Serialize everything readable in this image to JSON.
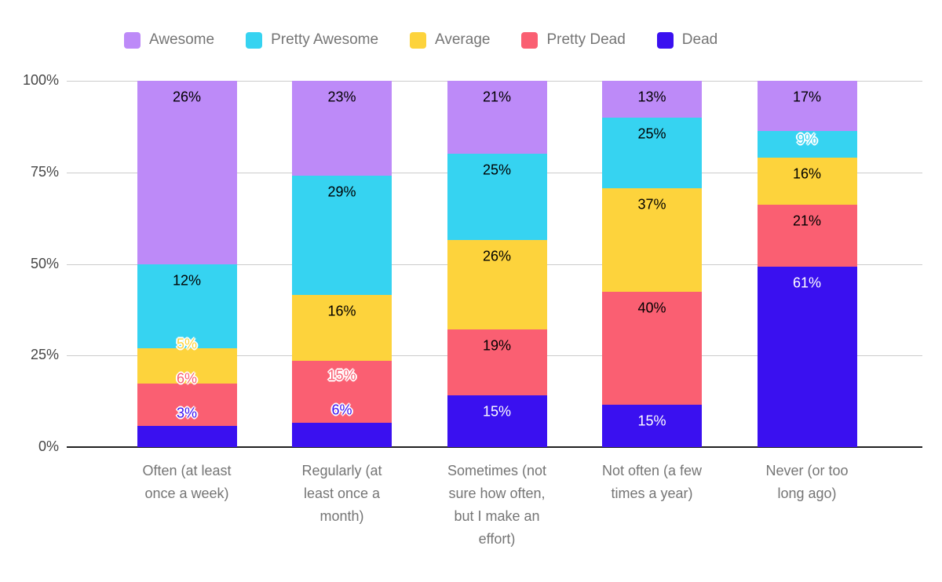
{
  "chart_data": {
    "type": "bar",
    "stacked": "percent",
    "legend_position": "top",
    "grid": true,
    "value_suffix": "%",
    "categories": [
      "Often (at least\nonce a week)",
      "Regularly (at\nleast once a\nmonth)",
      "Sometimes (not\nsure how often,\nbut I make an\neffort)",
      "Not often (a few\ntimes a year)",
      "Never (or too\nlong ago)"
    ],
    "series": [
      {
        "name": "Awesome",
        "color": "#bd8af8",
        "label_color": "dark",
        "values": [
          26,
          23,
          21,
          13,
          17
        ]
      },
      {
        "name": "Pretty Awesome",
        "color": "#36d3f1",
        "label_color": "dark",
        "values": [
          12,
          29,
          25,
          25,
          9
        ]
      },
      {
        "name": "Average",
        "color": "#fdd33c",
        "label_color": "dark",
        "values": [
          5,
          16,
          26,
          37,
          16
        ]
      },
      {
        "name": "Pretty Dead",
        "color": "#fa5f72",
        "label_color": "dark",
        "values": [
          6,
          15,
          19,
          40,
          21
        ]
      },
      {
        "name": "Dead",
        "color": "#3a10f0",
        "label_color": "light",
        "values": [
          3,
          6,
          15,
          15,
          61
        ]
      }
    ],
    "y_axis": {
      "min": 0,
      "max": 100,
      "ticks": [
        "0%",
        "25%",
        "50%",
        "75%",
        "100%"
      ],
      "tick_values": [
        0,
        25,
        50,
        75,
        100
      ]
    }
  },
  "colors": {
    "background": "#ffffff",
    "gridline": "#cccccc",
    "baseline": "#212121",
    "axis_text": "#464646",
    "category_text": "#757575",
    "legend_text": "#757575",
    "label_dark": "#000000",
    "label_light": "#ffffff"
  }
}
